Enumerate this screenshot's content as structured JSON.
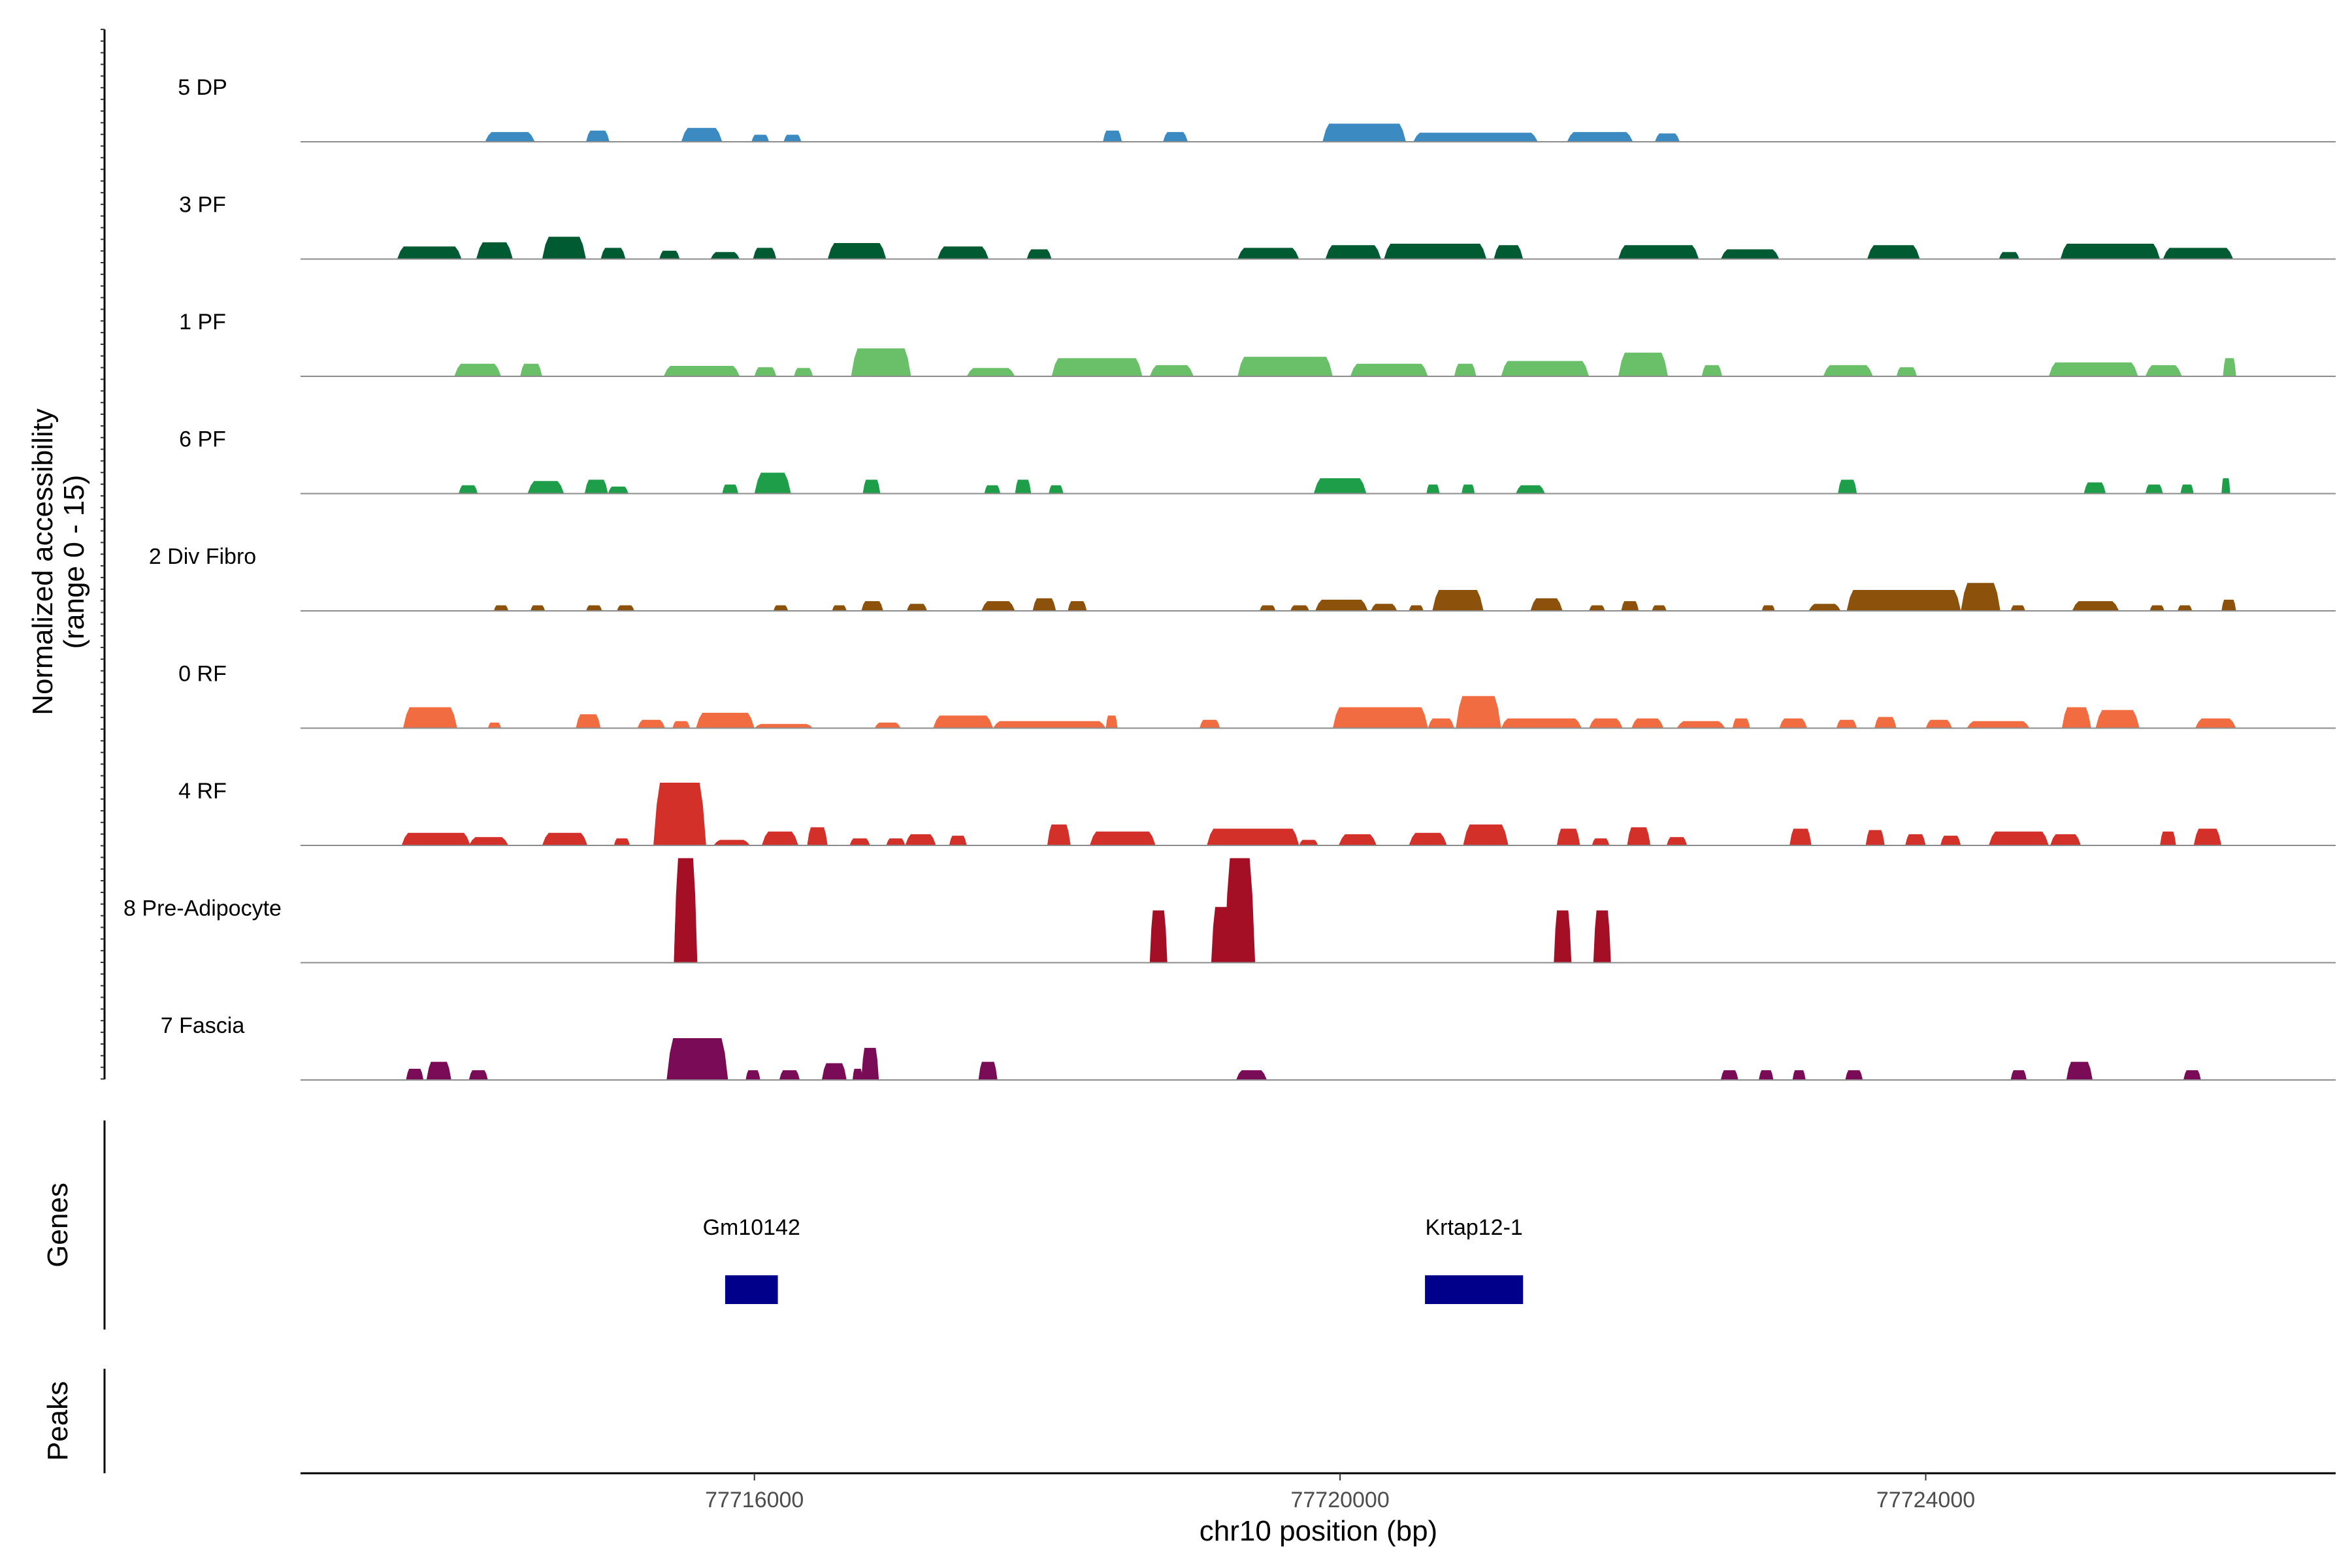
{
  "chart_data": {
    "type": "area",
    "title": "",
    "xlabel": "chr10 position (bp)",
    "ylabel": "Normalized accessibility\n(range 0 - 15)",
    "ylim": [
      0,
      15
    ],
    "xlim": [
      77712900,
      77726800
    ],
    "xticks": [
      77716000,
      77720000,
      77724000
    ],
    "xtick_labels": [
      "77716000",
      "77720000",
      "77724000"
    ],
    "tracks": [
      {
        "name": "5 DP",
        "color": "#3b8bc2",
        "peaks": [
          [
            77714160,
            77714500,
            1.4
          ],
          [
            77714850,
            77715010,
            1.6
          ],
          [
            77715500,
            77715780,
            2.0
          ],
          [
            77715980,
            77716100,
            1.0
          ],
          [
            77716200,
            77716320,
            1.0
          ],
          [
            77718380,
            77718510,
            1.6
          ],
          [
            77718790,
            77718960,
            1.4
          ],
          [
            77719880,
            77720450,
            2.6
          ],
          [
            77720500,
            77721350,
            1.3
          ],
          [
            77721550,
            77722000,
            1.4
          ],
          [
            77722150,
            77722320,
            1.2
          ]
        ]
      },
      {
        "name": "3 PF",
        "color": "#005a32",
        "peaks": [
          [
            77713560,
            77714000,
            1.8
          ],
          [
            77714100,
            77714350,
            2.4
          ],
          [
            77714550,
            77714850,
            3.2
          ],
          [
            77714950,
            77715120,
            1.6
          ],
          [
            77715350,
            77715490,
            1.2
          ],
          [
            77715700,
            77715900,
            1.0
          ],
          [
            77715990,
            77716150,
            1.6
          ],
          [
            77716500,
            77716900,
            2.3
          ],
          [
            77717250,
            77717600,
            1.8
          ],
          [
            77717860,
            77718030,
            1.4
          ],
          [
            77719300,
            77719720,
            1.6
          ],
          [
            77719900,
            77720280,
            2.0
          ],
          [
            77720300,
            77721000,
            2.2
          ],
          [
            77721050,
            77721250,
            2.0
          ],
          [
            77721900,
            77722450,
            2.0
          ],
          [
            77722600,
            77723000,
            1.4
          ],
          [
            77723600,
            77723960,
            2.0
          ],
          [
            77724500,
            77724640,
            1.0
          ],
          [
            77724920,
            77725600,
            2.2
          ],
          [
            77725620,
            77726100,
            1.6
          ]
        ]
      },
      {
        "name": "1 PF",
        "color": "#6abf69",
        "peaks": [
          [
            77713950,
            77714270,
            1.8
          ],
          [
            77714400,
            77714550,
            1.8
          ],
          [
            77715380,
            77715900,
            1.5
          ],
          [
            77716000,
            77716150,
            1.3
          ],
          [
            77716270,
            77716400,
            1.2
          ],
          [
            77716660,
            77717070,
            4.0
          ],
          [
            77717450,
            77717780,
            1.2
          ],
          [
            77718030,
            77718650,
            2.6
          ],
          [
            77718700,
            77719000,
            1.6
          ],
          [
            77719300,
            77719950,
            2.8
          ],
          [
            77720070,
            77720600,
            1.8
          ],
          [
            77720780,
            77720930,
            1.8
          ],
          [
            77721100,
            77721700,
            2.2
          ],
          [
            77721900,
            77722240,
            3.4
          ],
          [
            77722470,
            77722610,
            1.6
          ],
          [
            77723300,
            77723640,
            1.6
          ],
          [
            77723800,
            77723940,
            1.3
          ],
          [
            77724840,
            77725450,
            2.0
          ],
          [
            77725500,
            77725750,
            1.6
          ],
          [
            77726030,
            77726120,
            2.6
          ]
        ]
      },
      {
        "name": "6 PF",
        "color": "#1f9e4a",
        "peaks": [
          [
            77713980,
            77714110,
            1.2
          ],
          [
            77714450,
            77714700,
            1.8
          ],
          [
            77714840,
            77715000,
            2.0
          ],
          [
            77715000,
            77715140,
            1.0
          ],
          [
            77715780,
            77715890,
            1.3
          ],
          [
            77716000,
            77716250,
            3.0
          ],
          [
            77716740,
            77716860,
            2.0
          ],
          [
            77717570,
            77717680,
            1.2
          ],
          [
            77717780,
            77717890,
            2.0
          ],
          [
            77718010,
            77718110,
            1.2
          ],
          [
            77719820,
            77720180,
            2.2
          ],
          [
            77720590,
            77720680,
            1.3
          ],
          [
            77720830,
            77720920,
            1.3
          ],
          [
            77721200,
            77721400,
            1.2
          ],
          [
            77723400,
            77723530,
            2.0
          ],
          [
            77725080,
            77725230,
            1.6
          ],
          [
            77725500,
            77725620,
            1.3
          ],
          [
            77725740,
            77725830,
            1.3
          ],
          [
            77726020,
            77726080,
            2.2
          ]
        ]
      },
      {
        "name": "2 Div Fibro",
        "color": "#8c510a",
        "peaks": [
          [
            77714220,
            77714320,
            0.8
          ],
          [
            77714470,
            77714570,
            0.8
          ],
          [
            77714850,
            77714960,
            0.8
          ],
          [
            77715060,
            77715180,
            0.8
          ],
          [
            77716130,
            77716230,
            0.8
          ],
          [
            77716530,
            77716630,
            0.8
          ],
          [
            77716730,
            77716880,
            1.4
          ],
          [
            77717040,
            77717180,
            1.0
          ],
          [
            77717550,
            77717780,
            1.4
          ],
          [
            77717900,
            77718060,
            1.8
          ],
          [
            77718140,
            77718270,
            1.4
          ],
          [
            77719450,
            77719560,
            0.8
          ],
          [
            77719660,
            77719790,
            0.8
          ],
          [
            77719830,
            77720190,
            1.6
          ],
          [
            77720210,
            77720390,
            1.0
          ],
          [
            77720470,
            77720570,
            0.8
          ],
          [
            77720630,
            77720980,
            3.0
          ],
          [
            77721300,
            77721520,
            1.8
          ],
          [
            77721700,
            77721810,
            0.8
          ],
          [
            77721920,
            77722040,
            1.4
          ],
          [
            77722130,
            77722230,
            0.8
          ],
          [
            77722880,
            77722970,
            0.8
          ],
          [
            77723200,
            77723420,
            1.0
          ],
          [
            77723460,
            77724240,
            3.0
          ],
          [
            77724240,
            77724510,
            4.0
          ],
          [
            77724580,
            77724680,
            0.8
          ],
          [
            77725000,
            77725320,
            1.4
          ],
          [
            77725530,
            77725630,
            0.8
          ],
          [
            77725720,
            77725820,
            0.8
          ],
          [
            77726020,
            77726120,
            1.6
          ]
        ]
      },
      {
        "name": "0 RF",
        "color": "#f16c41",
        "peaks": [
          [
            77713600,
            77713970,
            3.0
          ],
          [
            77714180,
            77714270,
            0.8
          ],
          [
            77714780,
            77714950,
            2.0
          ],
          [
            77715200,
            77715390,
            1.2
          ],
          [
            77715440,
            77715560,
            1.0
          ],
          [
            77715600,
            77716000,
            2.2
          ],
          [
            77716000,
            77716400,
            0.6
          ],
          [
            77716820,
            77717000,
            0.8
          ],
          [
            77717220,
            77717630,
            1.8
          ],
          [
            77717630,
            77718400,
            1.0
          ],
          [
            77718400,
            77718480,
            1.8
          ],
          [
            77719040,
            77719180,
            1.2
          ],
          [
            77719950,
            77720600,
            3.0
          ],
          [
            77720600,
            77720780,
            1.4
          ],
          [
            77720790,
            77721100,
            4.6
          ],
          [
            77721100,
            77721650,
            1.4
          ],
          [
            77721700,
            77721930,
            1.4
          ],
          [
            77721990,
            77722210,
            1.4
          ],
          [
            77722300,
            77722630,
            1.0
          ],
          [
            77722680,
            77722800,
            1.4
          ],
          [
            77723000,
            77723190,
            1.4
          ],
          [
            77723390,
            77723530,
            1.2
          ],
          [
            77723650,
            77723800,
            1.6
          ],
          [
            77724000,
            77724180,
            1.2
          ],
          [
            77724280,
            77724710,
            1.0
          ],
          [
            77724930,
            77725130,
            3.0
          ],
          [
            77725160,
            77725460,
            2.6
          ],
          [
            77725840,
            77726120,
            1.4
          ]
        ]
      },
      {
        "name": "4 RF",
        "color": "#d4302a",
        "peaks": [
          [
            77713590,
            77714060,
            1.8
          ],
          [
            77714050,
            77714320,
            1.2
          ],
          [
            77714550,
            77714860,
            1.8
          ],
          [
            77715040,
            77715150,
            1.0
          ],
          [
            77715310,
            77715670,
            9.0
          ],
          [
            77715720,
            77715970,
            0.8
          ],
          [
            77716050,
            77716300,
            2.0
          ],
          [
            77716360,
            77716500,
            2.6
          ],
          [
            77716650,
            77716790,
            1.0
          ],
          [
            77716900,
            77717030,
            1.0
          ],
          [
            77717030,
            77717240,
            1.6
          ],
          [
            77717330,
            77717450,
            1.4
          ],
          [
            77718000,
            77718160,
            3.0
          ],
          [
            77718290,
            77718740,
            2.0
          ],
          [
            77719090,
            77719720,
            2.4
          ],
          [
            77719720,
            77719850,
            0.8
          ],
          [
            77719990,
            77720250,
            1.6
          ],
          [
            77720470,
            77720730,
            1.8
          ],
          [
            77720840,
            77721150,
            3.0
          ],
          [
            77721480,
            77721640,
            2.4
          ],
          [
            77721720,
            77721840,
            1.0
          ],
          [
            77721960,
            77722120,
            2.6
          ],
          [
            77722230,
            77722370,
            1.2
          ],
          [
            77723070,
            77723220,
            2.4
          ],
          [
            77723590,
            77723720,
            2.2
          ],
          [
            77723860,
            77724000,
            1.6
          ],
          [
            77724100,
            77724240,
            1.4
          ],
          [
            77724430,
            77724840,
            2.0
          ],
          [
            77724850,
            77725060,
            1.6
          ],
          [
            77725600,
            77725710,
            2.0
          ],
          [
            77725830,
            77726020,
            2.4
          ]
        ]
      },
      {
        "name": "8 Pre-Adipocyte",
        "color": "#a50f26",
        "peaks": [
          [
            77715450,
            77715530,
            8.0
          ],
          [
            77715450,
            77715610,
            15.0
          ],
          [
            77718700,
            77718820,
            7.5
          ],
          [
            77719120,
            77719270,
            8.0
          ],
          [
            77719210,
            77719420,
            15.0
          ],
          [
            77721460,
            77721580,
            7.5
          ],
          [
            77721730,
            77721850,
            7.5
          ]
        ]
      },
      {
        "name": "7 Fascia",
        "color": "#7a0c57",
        "peaks": [
          [
            77713620,
            77713740,
            1.6
          ],
          [
            77713760,
            77713930,
            2.6
          ],
          [
            77714050,
            77714180,
            1.4
          ],
          [
            77715400,
            77715820,
            6.0
          ],
          [
            77715940,
            77716040,
            1.4
          ],
          [
            77716170,
            77716310,
            1.4
          ],
          [
            77716460,
            77716630,
            2.4
          ],
          [
            77716670,
            77716740,
            1.6
          ],
          [
            77716730,
            77716850,
            4.6
          ],
          [
            77717530,
            77717660,
            2.6
          ],
          [
            77719290,
            77719500,
            1.4
          ],
          [
            77722600,
            77722720,
            1.4
          ],
          [
            77722860,
            77722960,
            1.4
          ],
          [
            77723090,
            77723180,
            1.4
          ],
          [
            77723450,
            77723570,
            1.4
          ],
          [
            77724580,
            77724690,
            1.4
          ],
          [
            77724960,
            77725140,
            2.6
          ],
          [
            77725760,
            77725880,
            1.4
          ]
        ]
      }
    ],
    "genes": [
      {
        "name": "Gm10142",
        "start": 77715800,
        "end": 77716160,
        "color": "#00008b"
      },
      {
        "name": "Krtap12-1",
        "start": 77720580,
        "end": 77721250,
        "color": "#00008b"
      }
    ],
    "panels": {
      "accessibility_title": "Normalized accessibility",
      "accessibility_range": "(range 0 - 15)",
      "genes_title": "Genes",
      "peaks_title": "Peaks"
    }
  }
}
